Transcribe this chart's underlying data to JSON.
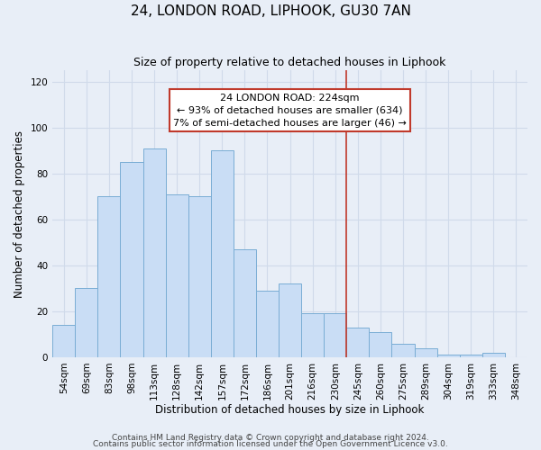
{
  "title": "24, LONDON ROAD, LIPHOOK, GU30 7AN",
  "subtitle": "Size of property relative to detached houses in Liphook",
  "xlabel": "Distribution of detached houses by size in Liphook",
  "ylabel": "Number of detached properties",
  "bar_labels": [
    "54sqm",
    "69sqm",
    "83sqm",
    "98sqm",
    "113sqm",
    "128sqm",
    "142sqm",
    "157sqm",
    "172sqm",
    "186sqm",
    "201sqm",
    "216sqm",
    "230sqm",
    "245sqm",
    "260sqm",
    "275sqm",
    "289sqm",
    "304sqm",
    "319sqm",
    "333sqm",
    "348sqm"
  ],
  "bar_values": [
    14,
    30,
    70,
    85,
    91,
    71,
    70,
    90,
    47,
    29,
    32,
    19,
    19,
    13,
    11,
    6,
    4,
    1,
    1,
    2,
    0
  ],
  "bar_color": "#c9ddf5",
  "bar_edge_color": "#7aadd4",
  "vline_x_index": 12.5,
  "vline_color": "#c0392b",
  "annotation_title": "24 LONDON ROAD: 224sqm",
  "annotation_line1": "← 93% of detached houses are smaller (634)",
  "annotation_line2": "7% of semi-detached houses are larger (46) →",
  "annotation_box_color": "#ffffff",
  "annotation_box_edge": "#c0392b",
  "ylim": [
    0,
    125
  ],
  "yticks": [
    0,
    20,
    40,
    60,
    80,
    100,
    120
  ],
  "footnote1": "Contains HM Land Registry data © Crown copyright and database right 2024.",
  "footnote2": "Contains public sector information licensed under the Open Government Licence v3.0.",
  "background_color": "#e8eef7",
  "grid_color": "#d0daea",
  "title_fontsize": 11,
  "subtitle_fontsize": 9,
  "axis_label_fontsize": 8.5,
  "tick_fontsize": 7.5,
  "annotation_fontsize": 8,
  "footnote_fontsize": 6.5
}
